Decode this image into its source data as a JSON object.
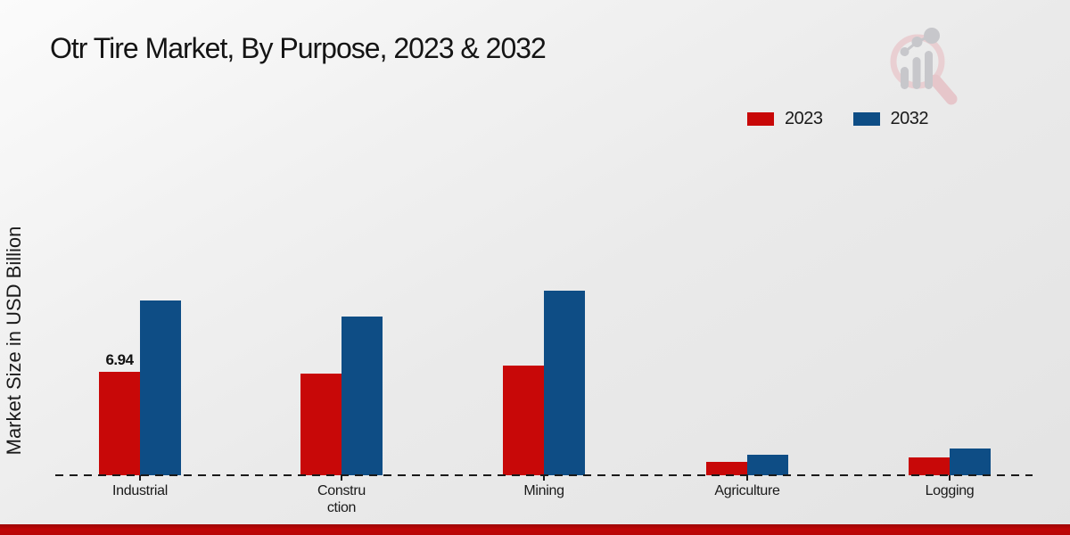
{
  "chart_data": {
    "type": "bar",
    "title": "Otr Tire Market, By Purpose, 2023 & 2032",
    "ylabel": "Market Size in USD Billion",
    "xlabel": "",
    "categories": [
      "Industrial",
      "Constru\nction",
      "Mining",
      "Agriculture",
      "Logging"
    ],
    "series": [
      {
        "name": "2023",
        "color": "#c80808",
        "values": [
          6.94,
          6.8,
          7.35,
          0.9,
          1.2
        ]
      },
      {
        "name": "2032",
        "color": "#0e4d85",
        "values": [
          11.7,
          10.65,
          12.4,
          1.38,
          1.8
        ]
      }
    ],
    "data_labels": [
      {
        "series_index": 0,
        "category_index": 0,
        "text": "6.94"
      }
    ],
    "legend_position": "top-right",
    "legend_entries": [
      "2023",
      "2032"
    ],
    "baseline_style": "dashed",
    "grid": false,
    "ylim": [
      0,
      13.5
    ]
  },
  "colors": {
    "series_2023": "#c80808",
    "series_2032": "#0e4d85",
    "footer_band": "#b90606",
    "text": "#1a1a1a"
  },
  "icons": {
    "watermark": "magnifier-bar-chart-logo"
  }
}
